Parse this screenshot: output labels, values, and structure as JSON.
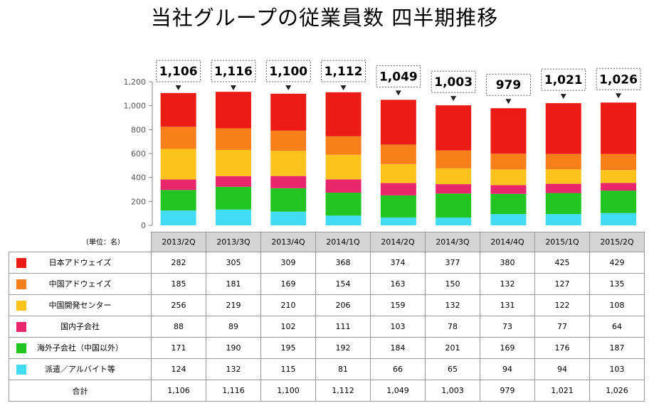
{
  "title": "当社グループの従業員数 四半期推移",
  "unit_label": "（単位：名）",
  "total_label": "合計",
  "chart_data": {
    "type": "bar",
    "stacked": true,
    "title": "当社グループの従業員数 四半期推移",
    "categories": [
      "2013/2Q",
      "2013/3Q",
      "2013/4Q",
      "2014/1Q",
      "2014/2Q",
      "2014/3Q",
      "2014/4Q",
      "2015/1Q",
      "2015/2Q"
    ],
    "ylim": [
      0,
      1200
    ],
    "yticks": [
      0,
      200,
      400,
      600,
      800,
      1000,
      1200
    ],
    "ytick_labels": [
      "0",
      "200",
      "400",
      "600",
      "800",
      "1,000",
      "1,200"
    ],
    "series": [
      {
        "name": "派遣／アルバイト等",
        "color": "#44dcf5",
        "values": [
          124,
          132,
          115,
          81,
          66,
          65,
          94,
          94,
          103
        ]
      },
      {
        "name": "海外子会社（中国以外）",
        "color": "#22c422",
        "values": [
          171,
          190,
          195,
          192,
          184,
          201,
          169,
          176,
          187
        ]
      },
      {
        "name": "国内子会社",
        "color": "#e8266b",
        "values": [
          88,
          89,
          102,
          111,
          103,
          78,
          73,
          77,
          64
        ]
      },
      {
        "name": "中国開発センター",
        "color": "#fcc31c",
        "values": [
          256,
          219,
          210,
          206,
          159,
          132,
          131,
          122,
          108
        ]
      },
      {
        "name": "中国アドウェイズ",
        "color": "#f97f1b",
        "values": [
          185,
          181,
          169,
          154,
          163,
          150,
          132,
          127,
          135
        ]
      },
      {
        "name": "日本アドウェイズ",
        "color": "#ea1c15",
        "values": [
          282,
          305,
          309,
          368,
          374,
          377,
          380,
          425,
          429
        ]
      }
    ],
    "totals": [
      1106,
      1116,
      1100,
      1112,
      1049,
      1003,
      979,
      1021,
      1026
    ],
    "total_labels": [
      "1,106",
      "1,116",
      "1,100",
      "1,112",
      "1,049",
      "1,003",
      "979",
      "1,021",
      "1,026"
    ]
  },
  "table": {
    "rows_order": [
      5,
      4,
      3,
      2,
      1,
      0
    ],
    "rows": [
      {
        "label": "日本アドウェイズ",
        "cells": [
          "282",
          "305",
          "309",
          "368",
          "374",
          "377",
          "380",
          "425",
          "429"
        ]
      },
      {
        "label": "中国アドウェイズ",
        "cells": [
          "185",
          "181",
          "169",
          "154",
          "163",
          "150",
          "132",
          "127",
          "135"
        ]
      },
      {
        "label": "中国開発センター",
        "cells": [
          "256",
          "219",
          "210",
          "206",
          "159",
          "132",
          "131",
          "122",
          "108"
        ]
      },
      {
        "label": "国内子会社",
        "cells": [
          "88",
          "89",
          "102",
          "111",
          "103",
          "78",
          "73",
          "77",
          "64"
        ]
      },
      {
        "label": "海外子会社（中国以外）",
        "cells": [
          "171",
          "190",
          "195",
          "192",
          "184",
          "201",
          "169",
          "176",
          "187"
        ]
      },
      {
        "label": "派遣／アルバイト等",
        "cells": [
          "124",
          "132",
          "115",
          "81",
          "66",
          "65",
          "94",
          "94",
          "103"
        ]
      }
    ],
    "total_cells": [
      "1,106",
      "1,116",
      "1,100",
      "1,112",
      "1,049",
      "1,003",
      "979",
      "1,021",
      "1,026"
    ]
  }
}
